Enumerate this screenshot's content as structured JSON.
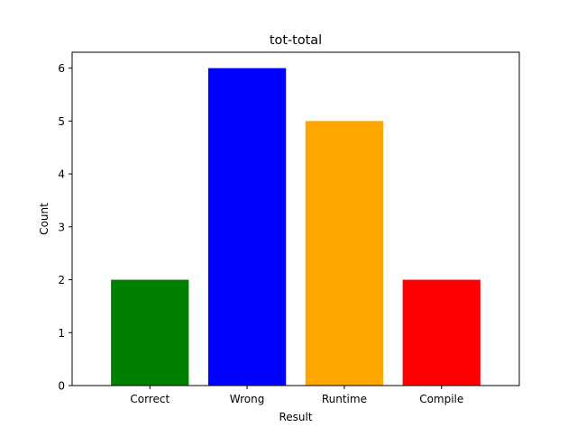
{
  "chart_data": {
    "type": "bar",
    "title": "tot-total",
    "xlabel": "Result",
    "ylabel": "Count",
    "categories": [
      "Correct",
      "Wrong",
      "Runtime",
      "Compile"
    ],
    "values": [
      2,
      6,
      5,
      2
    ],
    "colors": [
      "#008000",
      "#0000ff",
      "#ffa500",
      "#ff0000"
    ],
    "ylim": [
      0,
      6.3
    ],
    "yticks": [
      0,
      1,
      2,
      3,
      4,
      5,
      6
    ],
    "grid": false,
    "legend": "none"
  }
}
